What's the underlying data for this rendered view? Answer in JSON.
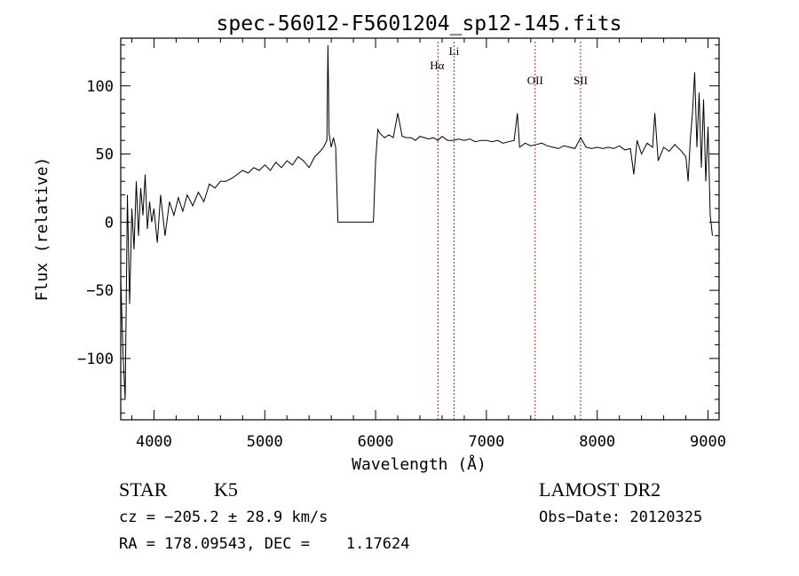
{
  "chart_data": {
    "type": "line",
    "title": "spec-56012-F5601204_sp12-145.fits",
    "xlabel": "Wavelength (Å)",
    "ylabel": "Flux (relative)",
    "xlim": [
      3700,
      9100
    ],
    "ylim": [
      -145,
      135
    ],
    "x_ticks": [
      {
        "value": 4000,
        "label": "4000"
      },
      {
        "value": 5000,
        "label": "5000"
      },
      {
        "value": 6000,
        "label": "6000"
      },
      {
        "value": 7000,
        "label": "7000"
      },
      {
        "value": 8000,
        "label": "8000"
      },
      {
        "value": 9000,
        "label": "9000"
      }
    ],
    "y_ticks": [
      {
        "value": -100,
        "label": "−100"
      },
      {
        "value": -50,
        "label": "−50"
      },
      {
        "value": 0,
        "label": "0"
      },
      {
        "value": 50,
        "label": "50"
      },
      {
        "value": 100,
        "label": "100"
      }
    ],
    "grid": false,
    "line_color": "#000000",
    "marker_color": "#b22222",
    "line_markers": [
      {
        "label": "Hα",
        "x": 6563
      },
      {
        "label": "Li",
        "x": 6708
      },
      {
        "label": "OII",
        "x": 7440
      },
      {
        "label": "SII",
        "x": 7850
      }
    ],
    "series": [
      {
        "x": [
          3700,
          3720,
          3740,
          3760,
          3780,
          3800,
          3820,
          3840,
          3860,
          3880,
          3900,
          3920,
          3940,
          3960,
          3980,
          4000,
          4030,
          4060,
          4100,
          4140,
          4180,
          4220,
          4260,
          4300,
          4350,
          4400,
          4450,
          4500,
          4550,
          4600,
          4650,
          4700,
          4750,
          4800,
          4850,
          4900,
          4950,
          5000,
          5050,
          5100,
          5150,
          5200,
          5250,
          5300,
          5350,
          5400,
          5450,
          5500,
          5530,
          5560,
          5570,
          5580,
          5600,
          5620,
          5640,
          5660,
          5680,
          5720,
          5800,
          5900,
          5980,
          6000,
          6020,
          6040,
          6080,
          6120,
          6160,
          6200,
          6240,
          6280,
          6320,
          6360,
          6400,
          6440,
          6480,
          6520,
          6563,
          6600,
          6650,
          6700,
          6750,
          6800,
          6850,
          6900,
          6950,
          7000,
          7050,
          7100,
          7150,
          7200,
          7250,
          7280,
          7300,
          7350,
          7400,
          7450,
          7500,
          7550,
          7600,
          7650,
          7700,
          7750,
          7800,
          7850,
          7900,
          7950,
          8000,
          8050,
          8100,
          8150,
          8200,
          8250,
          8300,
          8330,
          8360,
          8400,
          8450,
          8500,
          8520,
          8550,
          8600,
          8650,
          8700,
          8750,
          8800,
          8820,
          8840,
          8860,
          8880,
          8900,
          8920,
          8940,
          8960,
          8980,
          9000,
          9020,
          9040
        ],
        "y": [
          -40,
          -95,
          -130,
          20,
          -60,
          10,
          -20,
          30,
          -10,
          25,
          5,
          35,
          -5,
          15,
          0,
          10,
          -15,
          20,
          -10,
          15,
          5,
          18,
          8,
          20,
          12,
          22,
          15,
          28,
          25,
          30,
          30,
          32,
          35,
          38,
          36,
          40,
          38,
          42,
          38,
          44,
          40,
          45,
          42,
          48,
          45,
          40,
          48,
          52,
          55,
          60,
          130,
          65,
          55,
          62,
          55,
          0,
          0,
          0,
          0,
          0,
          0,
          45,
          68,
          65,
          62,
          64,
          62,
          80,
          63,
          62,
          62,
          60,
          63,
          62,
          61,
          62,
          60,
          63,
          60,
          60,
          61,
          60,
          61,
          59,
          60,
          60,
          59,
          60,
          58,
          59,
          60,
          80,
          55,
          58,
          56,
          57,
          58,
          56,
          55,
          54,
          56,
          55,
          54,
          62,
          55,
          54,
          55,
          54,
          55,
          54,
          56,
          53,
          54,
          35,
          60,
          50,
          58,
          55,
          80,
          45,
          55,
          52,
          57,
          53,
          48,
          30,
          60,
          80,
          110,
          55,
          95,
          40,
          90,
          30,
          70,
          5,
          -10
        ]
      }
    ]
  },
  "info": {
    "object_class": "STAR",
    "subclass": "K5",
    "survey": "LAMOST DR2",
    "cz": "cz = −205.2 ± 28.9 km/s",
    "obs_date": "Obs−Date: 20120325",
    "coords": "RA = 178.09543, DEC =    1.17624"
  }
}
